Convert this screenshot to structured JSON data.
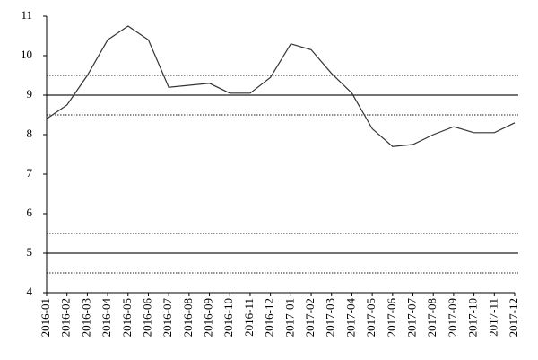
{
  "chart_data": {
    "type": "line",
    "categories": [
      "2016-01",
      "2016-02",
      "2016-03",
      "2016-04",
      "2016-05",
      "2016-06",
      "2016-07",
      "2016-08",
      "2016-09",
      "2016-10",
      "2016-11",
      "2016-12",
      "2017-01",
      "2017-02",
      "2017-03",
      "2017-04",
      "2017-05",
      "2017-06",
      "2017-07",
      "2017-08",
      "2017-09",
      "2017-10",
      "2017-11",
      "2017-12"
    ],
    "series": [
      {
        "color": "#333333",
        "values": [
          8.4,
          8.75,
          9.5,
          10.4,
          10.75,
          10.4,
          9.2,
          9.25,
          9.3,
          9.05,
          9.05,
          9.45,
          10.3,
          10.15,
          9.55,
          9.05,
          8.15,
          7.7,
          7.75,
          8.0,
          8.2,
          8.05,
          8.05,
          8.3
        ]
      }
    ],
    "ylim": [
      4,
      11
    ],
    "yticks": [
      4,
      5,
      6,
      7,
      8,
      9,
      10,
      11
    ],
    "reference_lines": [
      {
        "value": 4.5,
        "style": "dotted"
      },
      {
        "value": 5,
        "style": "solid"
      },
      {
        "value": 5.5,
        "style": "dotted"
      },
      {
        "value": 8.5,
        "style": "dotted"
      },
      {
        "value": 9,
        "style": "solid"
      },
      {
        "value": 9.5,
        "style": "dotted"
      }
    ]
  }
}
